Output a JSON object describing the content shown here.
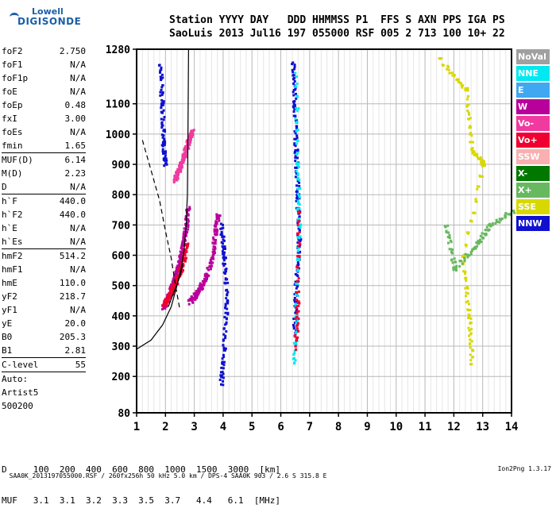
{
  "logo": {
    "brand_top": "Lowell",
    "brand_bottom": "DIGISONDE"
  },
  "header": {
    "line1": "Station YYYY DAY   DDD HHMMSS P1  FFS S AXN PPS IGA PS",
    "line2": "SaoLuis 2013 Jul16 197 055000 RSF 005 2 713 100 10+ 22"
  },
  "params": {
    "group1": [
      {
        "name": "foF2",
        "value": "2.750"
      },
      {
        "name": "foF1",
        "value": "N/A"
      },
      {
        "name": "foF1p",
        "value": "N/A"
      },
      {
        "name": "foE",
        "value": "N/A"
      },
      {
        "name": "foEp",
        "value": "0.48"
      },
      {
        "name": "fxI",
        "value": "3.00"
      },
      {
        "name": "foEs",
        "value": "N/A"
      },
      {
        "name": "fmin",
        "value": "1.65"
      }
    ],
    "group2": [
      {
        "name": "MUF(D)",
        "value": "6.14"
      },
      {
        "name": "M(D)",
        "value": "2.23"
      },
      {
        "name": "D",
        "value": "N/A"
      }
    ],
    "group3": [
      {
        "name": "h`F",
        "value": "440.0"
      },
      {
        "name": "h`F2",
        "value": "440.0"
      },
      {
        "name": "h`E",
        "value": "N/A"
      },
      {
        "name": "h`Es",
        "value": "N/A"
      }
    ],
    "group4": [
      {
        "name": "hmF2",
        "value": "514.2"
      },
      {
        "name": "hmF1",
        "value": "N/A"
      },
      {
        "name": "hmE",
        "value": "110.0"
      },
      {
        "name": "yF2",
        "value": "218.7"
      },
      {
        "name": "yF1",
        "value": "N/A"
      },
      {
        "name": "yE",
        "value": "20.0"
      },
      {
        "name": "B0",
        "value": "205.3"
      },
      {
        "name": "B1",
        "value": "2.81"
      }
    ],
    "group5": [
      {
        "name": "C-level",
        "value": "55"
      }
    ],
    "auto_label": "Auto:",
    "artist": "Artist5",
    "artist_code": "500200"
  },
  "legend": [
    {
      "label": "NoVal",
      "color": "#a0a0a0"
    },
    {
      "label": "NNE",
      "color": "#00e8f0"
    },
    {
      "label": "E",
      "color": "#40a8f0"
    },
    {
      "label": "W",
      "color": "#b8009a"
    },
    {
      "label": "Vo-",
      "color": "#f03aa0"
    },
    {
      "label": "Vo+",
      "color": "#f00030"
    },
    {
      "label": "SSW",
      "color": "#f8b0b0"
    },
    {
      "label": "X-",
      "color": "#007800"
    },
    {
      "label": "X+",
      "color": "#68b860"
    },
    {
      "label": "SSE",
      "color": "#d8d800"
    },
    {
      "label": "NNW",
      "color": "#1010d0"
    }
  ],
  "freq_muf": {
    "line1": "D     100  200  400  600  800  1000  1500  3000  [km]",
    "line2": "MUF   3.1  3.1  3.2  3.3  3.5  3.7   4.4   6.1  [MHz]"
  },
  "footer": {
    "left": "SAA0K_2013197055000.RSF / 260fx256h 50 kHz 5.0 km / DPS-4 SAA0K 903 / 2.6 S 315.8 E",
    "right": "Ion2Png 1.3.17"
  },
  "chart_data": {
    "type": "scatter",
    "title": "",
    "xlabel": "",
    "ylabel": "",
    "xlim": [
      1,
      14
    ],
    "ylim": [
      80,
      1280
    ],
    "x_ticks": [
      1,
      2,
      3,
      4,
      5,
      6,
      7,
      8,
      9,
      10,
      11,
      12,
      13,
      14
    ],
    "y_ticks": [
      80,
      200,
      300,
      400,
      500,
      600,
      700,
      800,
      900,
      1000,
      1100,
      1280
    ],
    "grid": true,
    "legend_position": "right",
    "traces": [
      {
        "color": "#b8009a",
        "points": [
          [
            1.9,
            430
          ],
          [
            2.0,
            450
          ],
          [
            2.1,
            470
          ],
          [
            2.2,
            500
          ],
          [
            2.3,
            530
          ],
          [
            2.4,
            560
          ],
          [
            2.5,
            600
          ],
          [
            2.6,
            650
          ],
          [
            2.7,
            700
          ],
          [
            2.75,
            760
          ]
        ]
      },
      {
        "color": "#f00030",
        "points": [
          [
            1.9,
            440
          ],
          [
            2.05,
            460
          ],
          [
            2.2,
            490
          ],
          [
            2.35,
            520
          ],
          [
            2.5,
            555
          ],
          [
            2.6,
            590
          ],
          [
            2.7,
            640
          ]
        ]
      },
      {
        "color": "#b8009a",
        "points": [
          [
            2.8,
            450
          ],
          [
            3.0,
            470
          ],
          [
            3.2,
            500
          ],
          [
            3.4,
            540
          ],
          [
            3.6,
            600
          ],
          [
            3.7,
            680
          ],
          [
            3.8,
            740
          ]
        ]
      },
      {
        "color": "#f03aa0",
        "points": [
          [
            2.3,
            850
          ],
          [
            2.4,
            880
          ],
          [
            2.5,
            900
          ],
          [
            2.6,
            930
          ],
          [
            2.7,
            960
          ],
          [
            2.8,
            990
          ],
          [
            2.9,
            1010
          ]
        ]
      },
      {
        "color": "#1010d0",
        "points": [
          [
            1.8,
            1230
          ],
          [
            1.85,
            1100
          ],
          [
            1.9,
            980
          ],
          [
            1.95,
            900
          ]
        ]
      },
      {
        "color": "#1010d0",
        "points": [
          [
            6.4,
            1240
          ],
          [
            6.45,
            1100
          ],
          [
            6.5,
            950
          ],
          [
            6.55,
            800
          ],
          [
            6.6,
            650
          ],
          [
            6.5,
            500
          ],
          [
            6.45,
            350
          ]
        ]
      },
      {
        "color": "#00e8f0",
        "points": [
          [
            6.5,
            1200
          ],
          [
            6.55,
            900
          ],
          [
            6.6,
            700
          ],
          [
            6.5,
            400
          ],
          [
            6.45,
            250
          ]
        ]
      },
      {
        "color": "#1010d0",
        "points": [
          [
            3.9,
            700
          ],
          [
            4.0,
            600
          ],
          [
            4.1,
            450
          ],
          [
            4.0,
            300
          ],
          [
            3.9,
            180
          ]
        ]
      },
      {
        "color": "#f00030",
        "points": [
          [
            6.6,
            750
          ],
          [
            6.55,
            450
          ],
          [
            6.5,
            300
          ]
        ]
      },
      {
        "color": "#d8d800",
        "points": [
          [
            11.5,
            1250
          ],
          [
            12.4,
            1150
          ],
          [
            12.6,
            950
          ],
          [
            13.0,
            900
          ],
          [
            12.3,
            600
          ],
          [
            12.5,
            400
          ],
          [
            12.6,
            250
          ]
        ]
      },
      {
        "color": "#68b860",
        "points": [
          [
            11.7,
            700
          ],
          [
            12.0,
            560
          ],
          [
            12.8,
            640
          ],
          [
            13.2,
            700
          ],
          [
            14.0,
            750
          ]
        ]
      }
    ],
    "fit_curves": [
      {
        "name": "",
        "style": "solid",
        "points": [
          [
            1.0,
            290
          ],
          [
            1.5,
            320
          ],
          [
            1.9,
            370
          ],
          [
            2.2,
            430
          ],
          [
            2.4,
            500
          ],
          [
            2.55,
            560
          ],
          [
            2.65,
            620
          ],
          [
            2.72,
            700
          ],
          [
            2.76,
            800
          ],
          [
            2.78,
            1000
          ],
          [
            2.8,
            1280
          ]
        ]
      },
      {
        "name": "",
        "style": "dashed",
        "points": [
          [
            1.2,
            980
          ],
          [
            1.5,
            880
          ],
          [
            1.8,
            780
          ],
          [
            2.0,
            680
          ],
          [
            2.2,
            590
          ],
          [
            2.35,
            500
          ],
          [
            2.5,
            420
          ]
        ]
      },
      {
        "name": "",
        "style": "solid",
        "points": [
          [
            2.1,
            430
          ],
          [
            2.3,
            480
          ],
          [
            2.5,
            530
          ],
          [
            2.6,
            570
          ]
        ]
      }
    ]
  }
}
